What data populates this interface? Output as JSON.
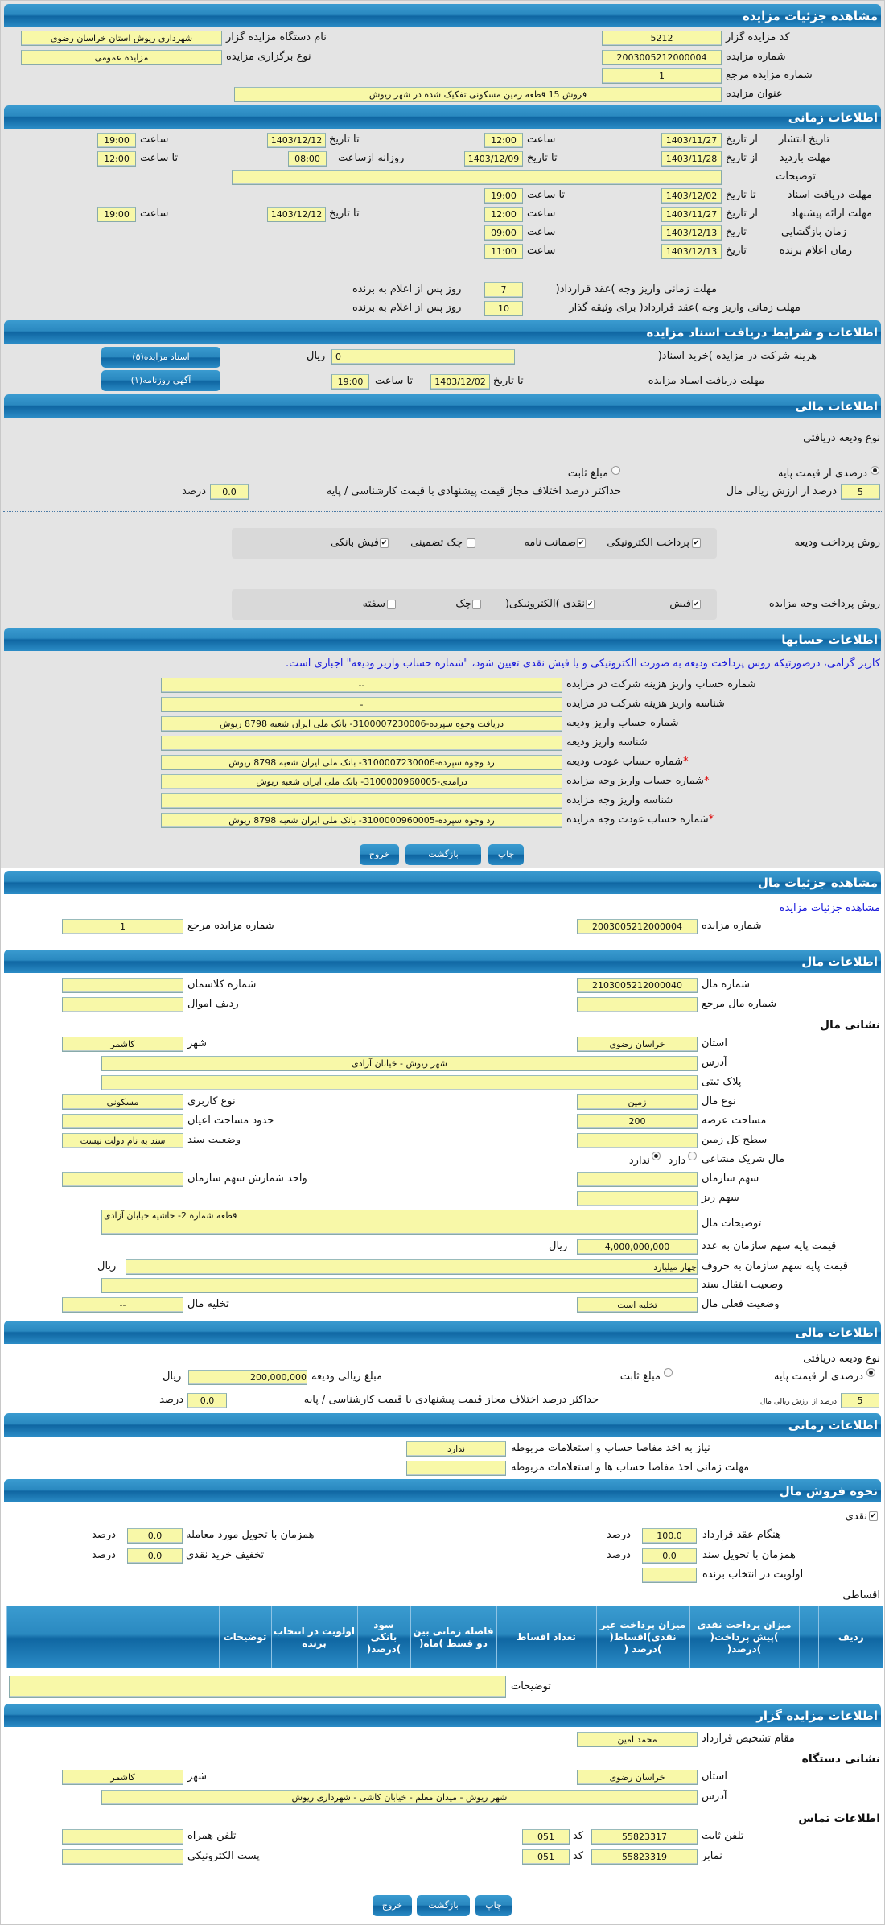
{
  "auction": {
    "title": "مشاهده جزئیات مزایده",
    "organizer_code_label": "کد مزایده گزار",
    "organizer_code": "5212",
    "organizer_name_label": "نام دستگاه مزایده گزار",
    "organizer_name": "شهرداری ریوش استان خراسان رضوی",
    "number_label": "شماره مزایده",
    "number": "2003005212000004",
    "type_label": "نوع برگزاری مزایده",
    "type": "مزایده عمومی",
    "ref_label": "شماره مزایده مرجع",
    "ref": "1",
    "subject_label": "عنوان مزایده",
    "subject": "فروش 15 قطعه زمین مسکونی تفکیک شده در شهر ریوش"
  },
  "timing": {
    "title": "اطلاعات زمانی",
    "from_date": "از تاریخ",
    "to_date": "تا تاریخ",
    "date": "تاریخ",
    "hour": "ساعت",
    "to_hour": "تا ساعت",
    "daily_from": "روزانه ازساعت",
    "publish_label": "تاریخ انتشار",
    "publish_from": "1403/11/27",
    "publish_from_time": "12:00",
    "publish_to": "1403/12/12",
    "publish_to_time": "19:00",
    "visit_label": "مهلت بازدید",
    "visit_from": "1403/11/28",
    "visit_to": "1403/12/09",
    "visit_daily_from": "08:00",
    "visit_to_time": "12:00",
    "notes_label": "توضیحات",
    "notes": "",
    "docs_label": "مهلت دریافت اسناد",
    "docs_to": "1403/12/02",
    "docs_to_time": "19:00",
    "offer_label": "مهلت ارائه پیشنهاد",
    "offer_from": "1403/11/27",
    "offer_from_time": "12:00",
    "offer_to": "1403/12/12",
    "offer_to_time": "19:00",
    "opening_label": "زمان بازگشایی",
    "opening_date": "1403/12/13",
    "opening_time": "09:00",
    "winner_label": "زمان اعلام برنده",
    "winner_date": "1403/12/13",
    "winner_time": "11:00",
    "pay_deadline_label": "مهلت زمانی واریز وجه )عقد قرارداد(",
    "pay_deadline": "7",
    "days_after": "روز پس از اعلام به برنده",
    "pay_deadline_bail_label": "مهلت زمانی واریز وجه )عقد قرارداد( برای وثیقه گذار",
    "pay_deadline_bail": "10"
  },
  "documents": {
    "title": "اطلاعات و شرایط دریافت اسناد مزایده",
    "fee_label": "هزینه شرکت در مزایده )خرید اسناد(",
    "fee": "0",
    "rial": "ریال",
    "deadline_label": "مهلت دریافت اسناد مزایده",
    "to_date": "تا تاریخ",
    "deadline_date": "1403/12/02",
    "to_hour": "تا ساعت",
    "deadline_time": "19:00",
    "docs_button": "اسناد مزایده(۵)",
    "ad_button": "آگهی روزنامه(۱)"
  },
  "finance": {
    "title": "اطلاعات مالی",
    "deposit_type_label": "نوع ودیعه دریافتی",
    "percent_option": "درصدی از قیمت پایه",
    "fixed_option": "مبلغ ثابت",
    "percent": "5",
    "percent_label": "درصد از ارزش ریالی مال",
    "max_diff_label": "حداکثر درصد اختلاف مجاز قیمت پیشنهادی با قیمت کارشناسی / پایه",
    "max_diff": "0.0",
    "percent_unit": "درصد",
    "deposit_methods_label": "روش پرداخت ودیعه",
    "deposit_methods": [
      {
        "label": "پرداخت الکترونیکی",
        "checked": true
      },
      {
        "label": "ضمانت نامه",
        "checked": true
      },
      {
        "label": "چک تضمینی",
        "checked": false
      },
      {
        "label": "فیش بانکی",
        "checked": true
      }
    ],
    "payment_methods_label": "روش پرداخت وجه مزایده",
    "payment_methods": [
      {
        "label": "فیش",
        "checked": true
      },
      {
        "label": "نقدی )الکترونیکی(",
        "checked": true
      },
      {
        "label": "چک",
        "checked": false
      },
      {
        "label": "سفته",
        "checked": false
      }
    ]
  },
  "accounts": {
    "title": "اطلاعات حسابها",
    "notice": "کاربر گرامی، درصورتیکه روش پرداخت ودیعه به صورت الکترونیکی و یا فیش نقدی تعیین شود، \"شماره حساب واریز ودیعه\" اجباری است.",
    "rows": [
      {
        "label": "شماره حساب واریز هزینه شرکت در مزایده",
        "value": "--",
        "required": false
      },
      {
        "label": "شناسه واریز هزینه شرکت در مزایده",
        "value": "-",
        "required": false
      },
      {
        "label": "شماره حساب واریز ودیعه",
        "value": "دریافت وجوه سپرده-3100007230006- بانک ملی ایران شعبه 8798 ریوش",
        "required": false
      },
      {
        "label": "شناسه واریز ودیعه",
        "value": "",
        "required": false
      },
      {
        "label": "شماره حساب عودت ودیعه",
        "value": "رد وجوه سپرده-3100007230006- بانک ملی ایران شعبه 8798 ریوش",
        "required": true
      },
      {
        "label": "شماره حساب واریز وجه مزایده",
        "value": "درآمدی-3100000960005- بانک ملی ایران شعبه ریوش",
        "required": true
      },
      {
        "label": "شناسه واریز وجه مزایده",
        "value": "",
        "required": false
      },
      {
        "label": "شماره حساب عودت وجه مزایده",
        "value": "رد وجوه سپرده-3100000960005- بانک ملی ایران شعبه 8798 ریوش",
        "required": true
      }
    ],
    "required_mark": "*"
  },
  "buttons": {
    "print": "چاپ",
    "back": "بازگشت",
    "exit": "خروج"
  },
  "item": {
    "title": "مشاهده جزئیات مال",
    "auction_link": "مشاهده جزئیات مزایده",
    "auction_number_label": "شماره مزایده",
    "auction_number": "2003005212000004",
    "ref_label": "شماره مزایده مرجع",
    "ref": "1",
    "info_title": "اطلاعات مال",
    "item_number_label": "شماره مال",
    "item_number": "2103005212000040",
    "classman_label": "شماره کلاسمان",
    "classman": "",
    "item_ref_label": "شماره مال مرجع",
    "item_ref": "",
    "assets_row_label": "ردیف اموال",
    "assets_row": "",
    "address_title": "نشانی مال",
    "province_label": "استان",
    "province": "خراسان رضوی",
    "city_label": "شهر",
    "city": "کاشمر",
    "address_label": "آدرس",
    "address": "شهر ریوش - خیابان آزادی",
    "plaque_label": "پلاک ثبتی",
    "plaque": "",
    "kind_label": "نوع مال",
    "kind": "زمین",
    "usage_label": "نوع کاربری",
    "usage": "مسکونی",
    "area_label": "مساحت عرصه",
    "area": "200",
    "building_area_label": "حدود مساحت اعیان",
    "building_area": "",
    "total_area_label": "سطح کل زمین",
    "total_area": "",
    "deed_label": "وضعیت سند",
    "deed": "سند به نام دولت نیست",
    "shared_label": "مال شریک مشاعی",
    "shared_yes": "دارد",
    "shared_no": "ندارد",
    "org_share_label": "سهم سازمان",
    "org_share": "",
    "share_unit_label": "واحد شمارش سهم سازمان",
    "share_unit": "",
    "small_share_label": "سهم ریز",
    "small_share": "",
    "desc_label": "توضیحات مال",
    "desc": "قطعه شماره 2- حاشیه خیابان آزادی",
    "base_price_label": "قیمت پایه سهم سازمان به عدد",
    "base_price": "4,000,000,000",
    "rial": "ریال",
    "base_price_words_label": "قیمت پایه سهم سازمان به حروف",
    "base_price_words": "چهار میلیارد",
    "transfer_label": "وضعیت انتقال سند",
    "transfer": "",
    "status_label": "وضعیت فعلی مال",
    "status": "تخلیه است",
    "evacuation_label": "تخلیه مال",
    "evacuation": "--"
  },
  "item_finance": {
    "title": "اطلاعات مالی",
    "deposit_type_label": "نوع ودیعه دریافتی",
    "percent_option": "درصدی از قیمت پایه",
    "fixed_option": "مبلغ ثابت",
    "deposit_amount_label": "مبلغ ریالی ودیعه",
    "deposit_amount": "200,000,000",
    "rial": "ریال",
    "percent": "5",
    "percent_label": "درصد از ارزش ریالی مال",
    "max_diff_label": "حداکثر درصد اختلاف مجاز قیمت پیشنهادی با قیمت کارشناسی / پایه",
    "max_diff": "0.0",
    "percent_unit": "درصد"
  },
  "item_timing": {
    "title": "اطلاعات زمانی",
    "clearance_label": "نیاز به اخذ مفاصا حساب و استعلامات مربوطه",
    "clearance": "ندارد",
    "clearance_deadline_label": "مهلت زمانی اخذ مفاصا حساب ها و استعلامات مربوطه",
    "clearance_deadline": ""
  },
  "sale": {
    "title": "نحوه فروش مال",
    "cash_label": "نقدی",
    "cash_checked": true,
    "on_contract_label": "هنگام عقد قرارداد",
    "on_contract": "100.0",
    "on_delivery_label": "همزمان با تحویل مورد معامله",
    "on_delivery": "0.0",
    "on_deed_label": "همزمان با تحویل سند",
    "on_deed": "0.0",
    "cash_discount_label": "تخفیف خرید نقدی",
    "cash_discount": "0.0",
    "priority_label": "اولویت در انتخاب برنده",
    "priority": "",
    "percent_unit": "درصد",
    "installment_label": "اقساطی",
    "table_headers": [
      "ردیف",
      "",
      "میزان پرداخت نقدی )پیش پرداخت( )درصد(",
      "میزان پرداخت غیر نقدی)اقساط( )درصد (",
      "تعداد اقساط",
      "فاصله زمانی بین دو قسط )ماه(",
      "سود بانکی )درصد(",
      "اولویت در انتخاب برنده",
      "توضیحات",
      ""
    ],
    "notes_label": "توضیحات",
    "notes": ""
  },
  "organizer": {
    "title": "اطلاعات مزایده گزار",
    "authority_label": "مقام تشخیص قرارداد",
    "authority": "محمد امین",
    "address_title": "نشانی دستگاه",
    "province_label": "استان",
    "province": "خراسان رضوی",
    "city_label": "شهر",
    "city": "کاشمر",
    "address_label": "آدرس",
    "address": "شهر ریوش - میدان معلم - خیابان کاشی - شهرداری ریوش",
    "contact_title": "اطلاعات تماس",
    "phone_label": "تلفن ثابت",
    "phone": "55823317",
    "code_label": "کد",
    "phone_code": "051",
    "fax_label": "نمابر",
    "fax": "55823319",
    "fax_code": "051",
    "mobile_label": "تلفن همراه",
    "mobile": "",
    "email_label": "پست الکترونیکی",
    "email": ""
  }
}
